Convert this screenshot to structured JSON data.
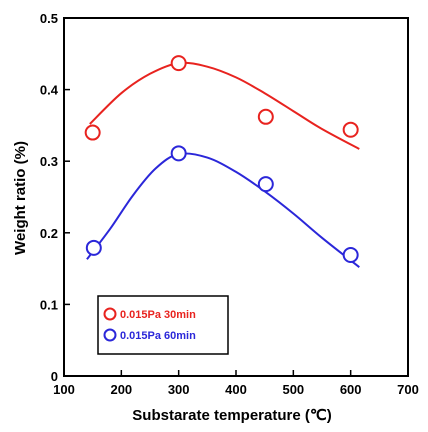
{
  "chart_data": {
    "type": "scatter",
    "xlabel": "Substarate temperature (℃)",
    "ylabel": "Weight ratio (%)",
    "xlim": [
      100,
      700
    ],
    "ylim": [
      0,
      0.5
    ],
    "xticks": [
      "100",
      "200",
      "300",
      "400",
      "500",
      "600",
      "700"
    ],
    "yticks": [
      "0",
      "0.1",
      "0.2",
      "0.3",
      "0.4",
      "0.5"
    ],
    "grid": false,
    "legend_position": "bottom-left",
    "series": [
      {
        "name": "0.015Pa 30min",
        "color": "#e8231f",
        "points": [
          {
            "x": 150,
            "y": 0.34
          },
          {
            "x": 300,
            "y": 0.437
          },
          {
            "x": 452,
            "y": 0.362
          },
          {
            "x": 600,
            "y": 0.344
          }
        ],
        "fit_curve": [
          {
            "x": 145,
            "y": 0.352
          },
          {
            "x": 200,
            "y": 0.395
          },
          {
            "x": 250,
            "y": 0.422
          },
          {
            "x": 300,
            "y": 0.437
          },
          {
            "x": 350,
            "y": 0.432
          },
          {
            "x": 400,
            "y": 0.417
          },
          {
            "x": 450,
            "y": 0.395
          },
          {
            "x": 500,
            "y": 0.37
          },
          {
            "x": 550,
            "y": 0.345
          },
          {
            "x": 615,
            "y": 0.317
          }
        ]
      },
      {
        "name": "0.015Pa 60min",
        "color": "#2b27d9",
        "points": [
          {
            "x": 152,
            "y": 0.179
          },
          {
            "x": 300,
            "y": 0.311
          },
          {
            "x": 452,
            "y": 0.268
          },
          {
            "x": 600,
            "y": 0.169
          }
        ],
        "fit_curve": [
          {
            "x": 140,
            "y": 0.163
          },
          {
            "x": 180,
            "y": 0.205
          },
          {
            "x": 220,
            "y": 0.252
          },
          {
            "x": 260,
            "y": 0.29
          },
          {
            "x": 300,
            "y": 0.31
          },
          {
            "x": 350,
            "y": 0.305
          },
          {
            "x": 400,
            "y": 0.285
          },
          {
            "x": 450,
            "y": 0.258
          },
          {
            "x": 500,
            "y": 0.227
          },
          {
            "x": 550,
            "y": 0.193
          },
          {
            "x": 615,
            "y": 0.152
          }
        ]
      }
    ]
  }
}
